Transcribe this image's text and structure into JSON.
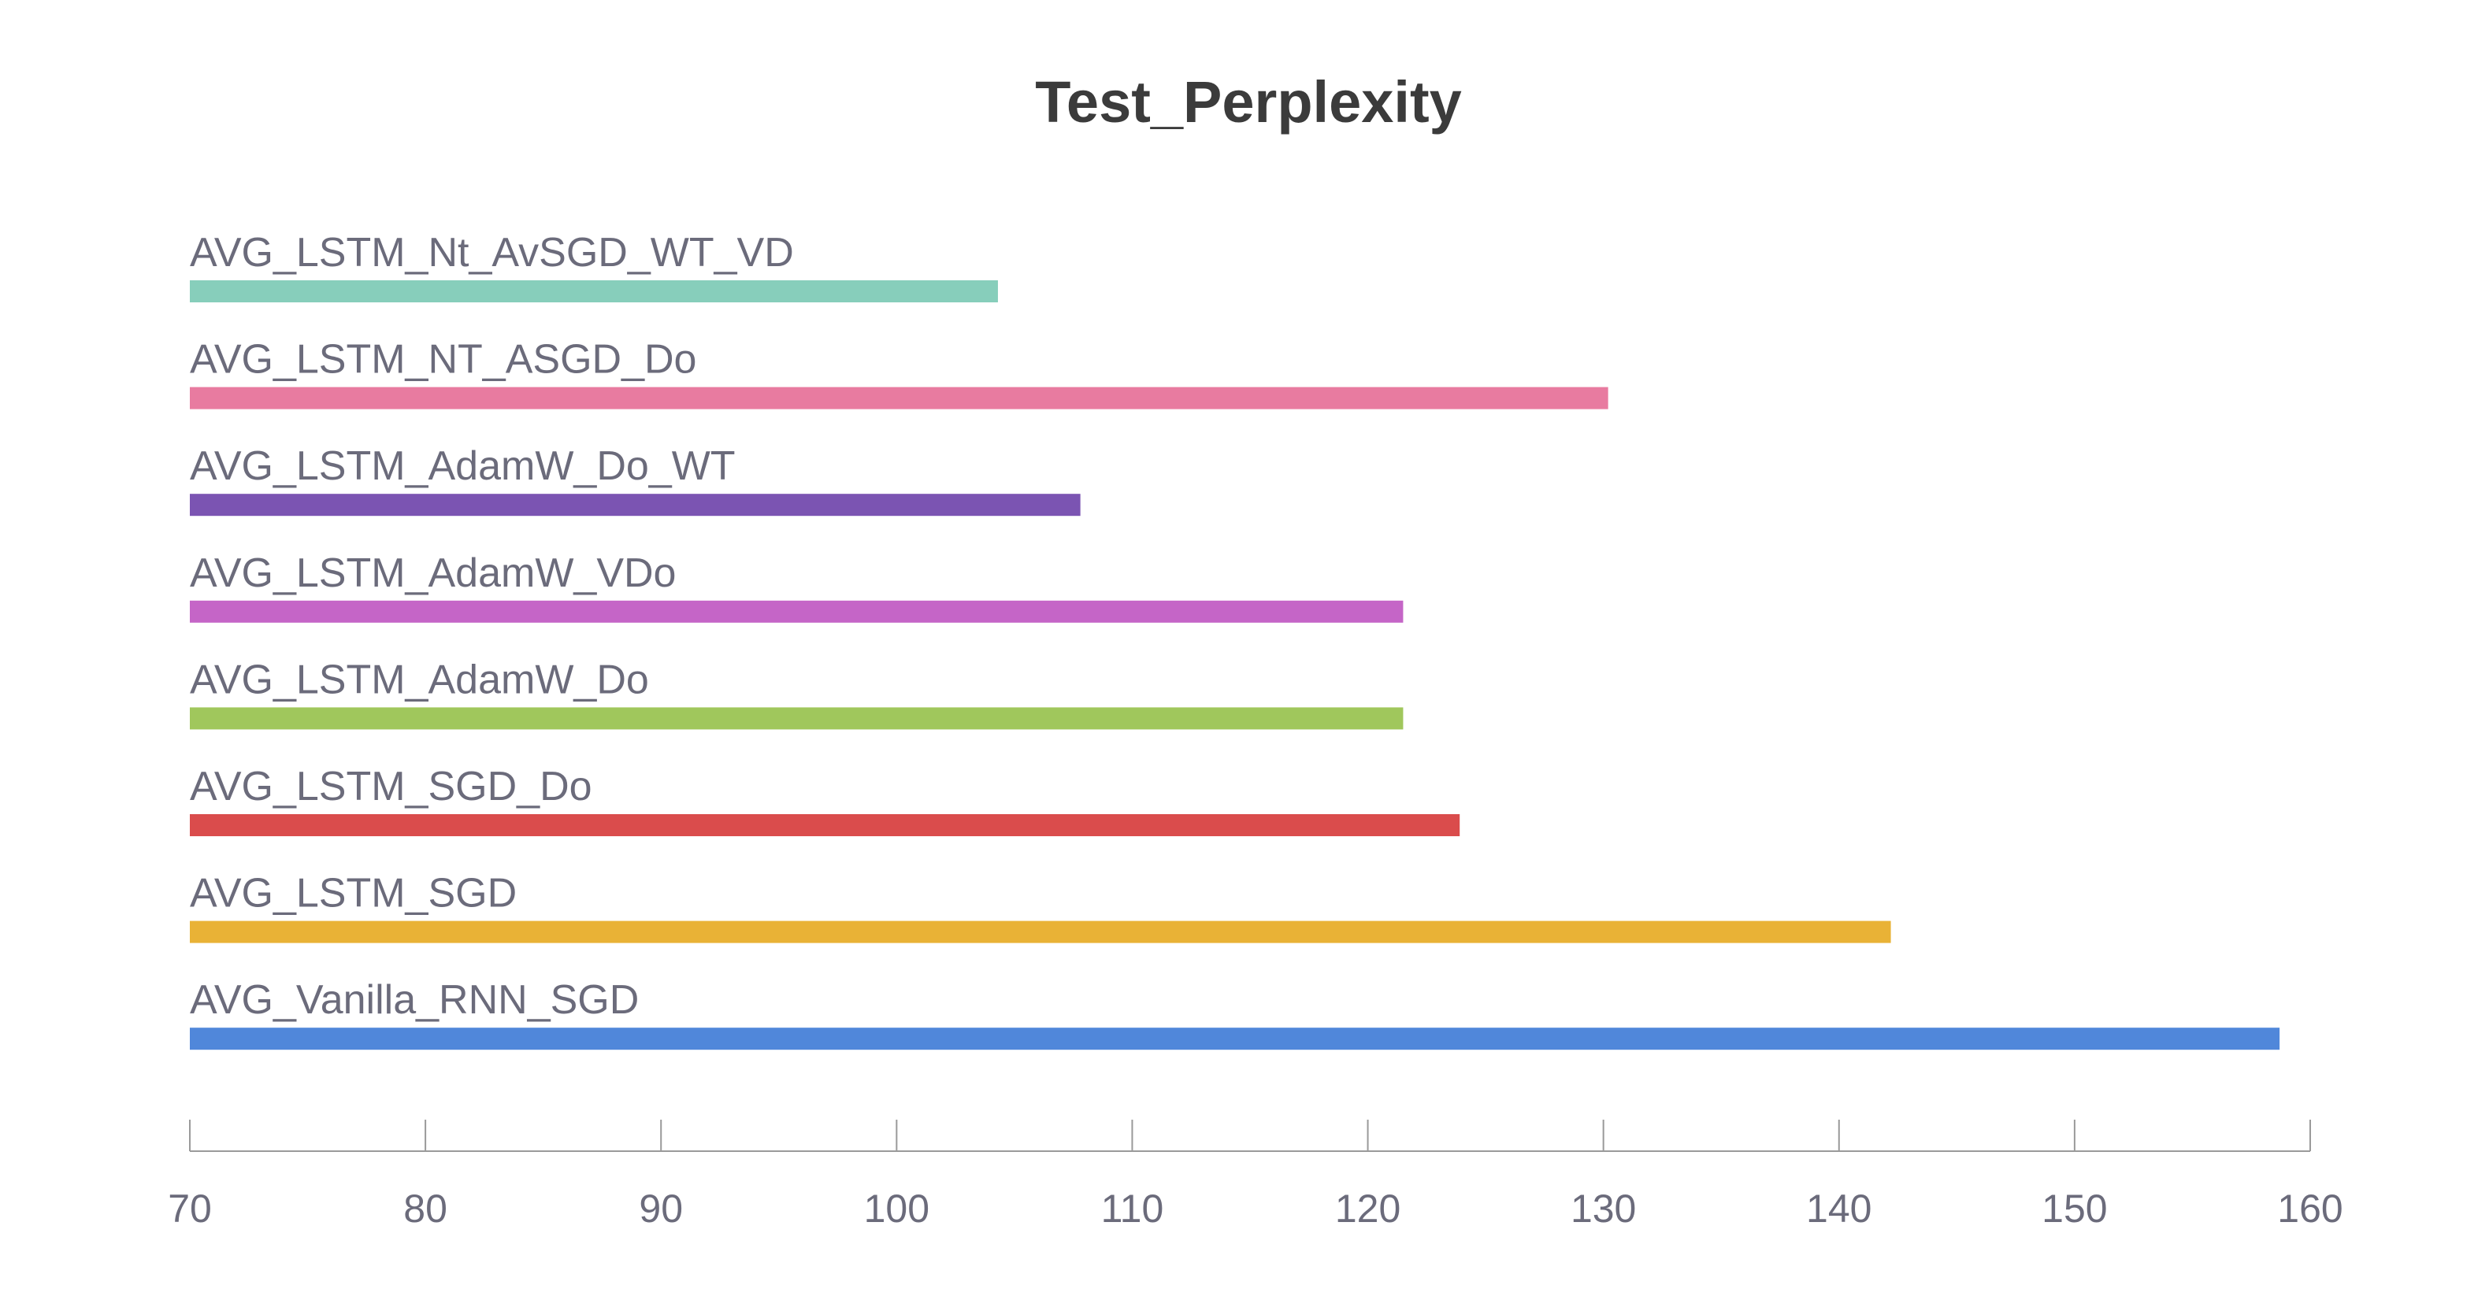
{
  "chart_data": {
    "type": "bar",
    "orientation": "horizontal",
    "title": "Test_Perplexity",
    "xlim": [
      70,
      160
    ],
    "xticks": [
      70,
      80,
      90,
      100,
      110,
      120,
      130,
      140,
      150,
      160
    ],
    "categories": [
      "AVG_LSTM_Nt_AvSGD_WT_VD",
      "AVG_LSTM_NT_ASGD_Do",
      "AVG_LSTM_AdamW_Do_WT",
      "AVG_LSTM_AdamW_VDo",
      "AVG_LSTM_AdamW_Do",
      "AVG_LSTM_SGD_Do",
      "AVG_LSTM_SGD",
      "AVG_Vanilla_RNN_SGD"
    ],
    "values": [
      104.3,
      130.2,
      107.8,
      121.5,
      121.5,
      123.9,
      142.2,
      158.7
    ],
    "colors": [
      "#87CEBB",
      "#E87BA0",
      "#7B54B2",
      "#C565C7",
      "#A0C75C",
      "#DA4C4C",
      "#E9B236",
      "#5087DA"
    ],
    "grid": false,
    "legend": "none"
  }
}
